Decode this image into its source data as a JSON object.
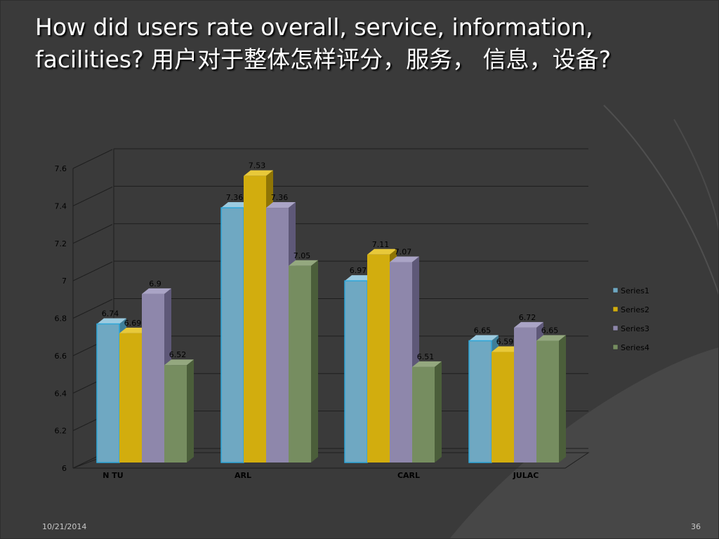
{
  "slide": {
    "title": "How did users rate overall, service, information, facilities? 用户对于整体怎样评分，服务， 信息，设备?",
    "date": "10/21/2014",
    "page_number": "36"
  },
  "colors": {
    "background": "#3a3a3a",
    "text": "#ffffff",
    "chart_text": "#000000"
  },
  "chart_data": {
    "type": "bar",
    "style": "3d-clustered-column",
    "title": "",
    "xlabel": "",
    "ylabel": "",
    "categories": [
      "N TU",
      "ARL",
      "CARL",
      "JULAC"
    ],
    "ylim": [
      6,
      7.6
    ],
    "yticks": [
      "6",
      "6.2",
      "6.4",
      "6.6",
      "6.8",
      "7",
      "7.2",
      "7.4",
      "7.6"
    ],
    "grid": true,
    "legend_position": "right",
    "series": [
      {
        "name": "Series1",
        "values": [
          6.74,
          7.36,
          6.97,
          6.65
        ],
        "labels": [
          "6.74",
          "7.36",
          "6.97",
          "6.65"
        ],
        "color": "#6fa8c2",
        "side": "#3f7e98",
        "top": "#9ccbe0"
      },
      {
        "name": "Series2",
        "values": [
          6.69,
          7.53,
          7.11,
          6.59
        ],
        "labels": [
          "6.69",
          "7.53",
          "7.11",
          "6.59"
        ],
        "color": "#d2ad0e",
        "side": "#8f7505",
        "top": "#e8c93a"
      },
      {
        "name": "Series3",
        "values": [
          6.9,
          7.36,
          7.07,
          6.72
        ],
        "labels": [
          "6.9",
          "7.36",
          "7.07",
          "6.72"
        ],
        "color": "#8e87ab",
        "side": "#5e5878",
        "top": "#aaa4c6"
      },
      {
        "name": "Series4",
        "values": [
          6.52,
          7.05,
          6.51,
          6.65
        ],
        "labels": [
          "6.52",
          "7.05",
          "6.51",
          "6.65"
        ],
        "color": "#768d60",
        "side": "#4b5e3a",
        "top": "#94a87f"
      }
    ]
  }
}
